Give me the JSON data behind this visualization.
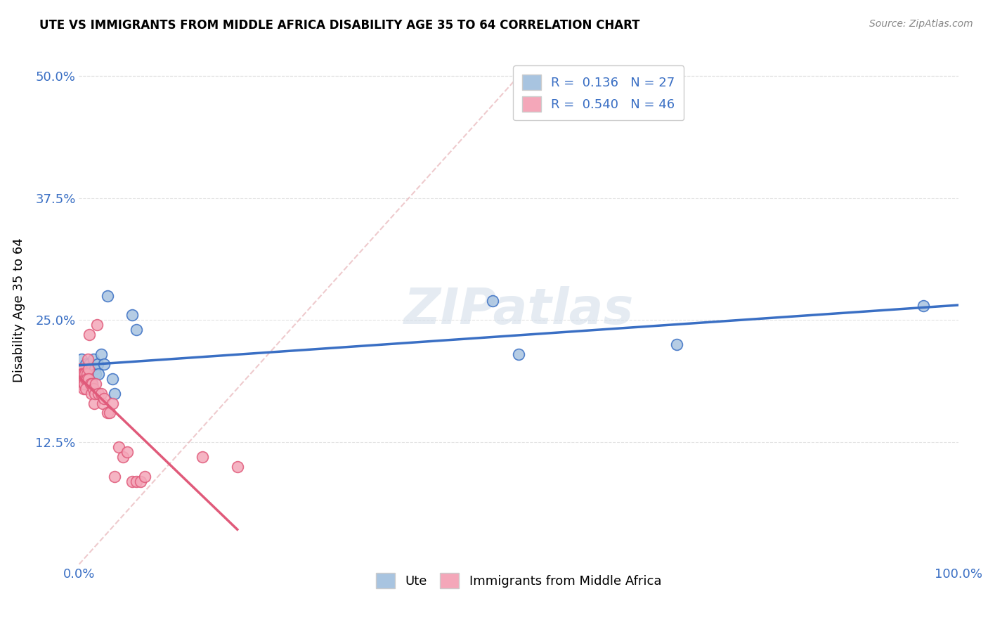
{
  "title": "UTE VS IMMIGRANTS FROM MIDDLE AFRICA DISABILITY AGE 35 TO 64 CORRELATION CHART",
  "source": "Source: ZipAtlas.com",
  "xlabel": "",
  "ylabel": "Disability Age 35 to 64",
  "legend_label_1": "Ute",
  "legend_label_2": "Immigrants from Middle Africa",
  "R1": 0.136,
  "N1": 27,
  "R2": 0.54,
  "N2": 46,
  "xlim": [
    0,
    1.0
  ],
  "ylim": [
    0.0,
    0.52
  ],
  "color_ute": "#a8c4e0",
  "color_immig": "#f4a7b9",
  "line_color_ute": "#3a6fc4",
  "line_color_immig": "#e05a7a",
  "trendline_color_dashed": "#e8b4b8",
  "ute_x": [
    0.002,
    0.003,
    0.004,
    0.005,
    0.007,
    0.008,
    0.009,
    0.01,
    0.012,
    0.013,
    0.015,
    0.016,
    0.018,
    0.019,
    0.021,
    0.022,
    0.025,
    0.028,
    0.032,
    0.038,
    0.04,
    0.06,
    0.065,
    0.47,
    0.5,
    0.68,
    0.96
  ],
  "ute_y": [
    0.195,
    0.21,
    0.2,
    0.185,
    0.19,
    0.205,
    0.195,
    0.185,
    0.205,
    0.2,
    0.185,
    0.21,
    0.2,
    0.195,
    0.205,
    0.195,
    0.215,
    0.205,
    0.275,
    0.19,
    0.175,
    0.255,
    0.24,
    0.27,
    0.215,
    0.225,
    0.265
  ],
  "immig_x": [
    0.001,
    0.001,
    0.002,
    0.002,
    0.003,
    0.003,
    0.004,
    0.004,
    0.005,
    0.005,
    0.006,
    0.006,
    0.007,
    0.008,
    0.008,
    0.009,
    0.009,
    0.01,
    0.011,
    0.011,
    0.012,
    0.013,
    0.014,
    0.015,
    0.016,
    0.017,
    0.018,
    0.019,
    0.02,
    0.022,
    0.025,
    0.027,
    0.028,
    0.032,
    0.035,
    0.038,
    0.04,
    0.045,
    0.05,
    0.055,
    0.06,
    0.065,
    0.07,
    0.075,
    0.14,
    0.18
  ],
  "immig_y": [
    0.195,
    0.2,
    0.185,
    0.195,
    0.2,
    0.195,
    0.185,
    0.195,
    0.195,
    0.18,
    0.19,
    0.185,
    0.195,
    0.19,
    0.18,
    0.195,
    0.19,
    0.21,
    0.2,
    0.19,
    0.235,
    0.185,
    0.175,
    0.185,
    0.18,
    0.165,
    0.175,
    0.185,
    0.245,
    0.175,
    0.175,
    0.165,
    0.17,
    0.155,
    0.155,
    0.165,
    0.09,
    0.12,
    0.11,
    0.115,
    0.085,
    0.085,
    0.085,
    0.09,
    0.11,
    0.1
  ],
  "background_color": "#ffffff",
  "grid_color": "#e0e0e0"
}
